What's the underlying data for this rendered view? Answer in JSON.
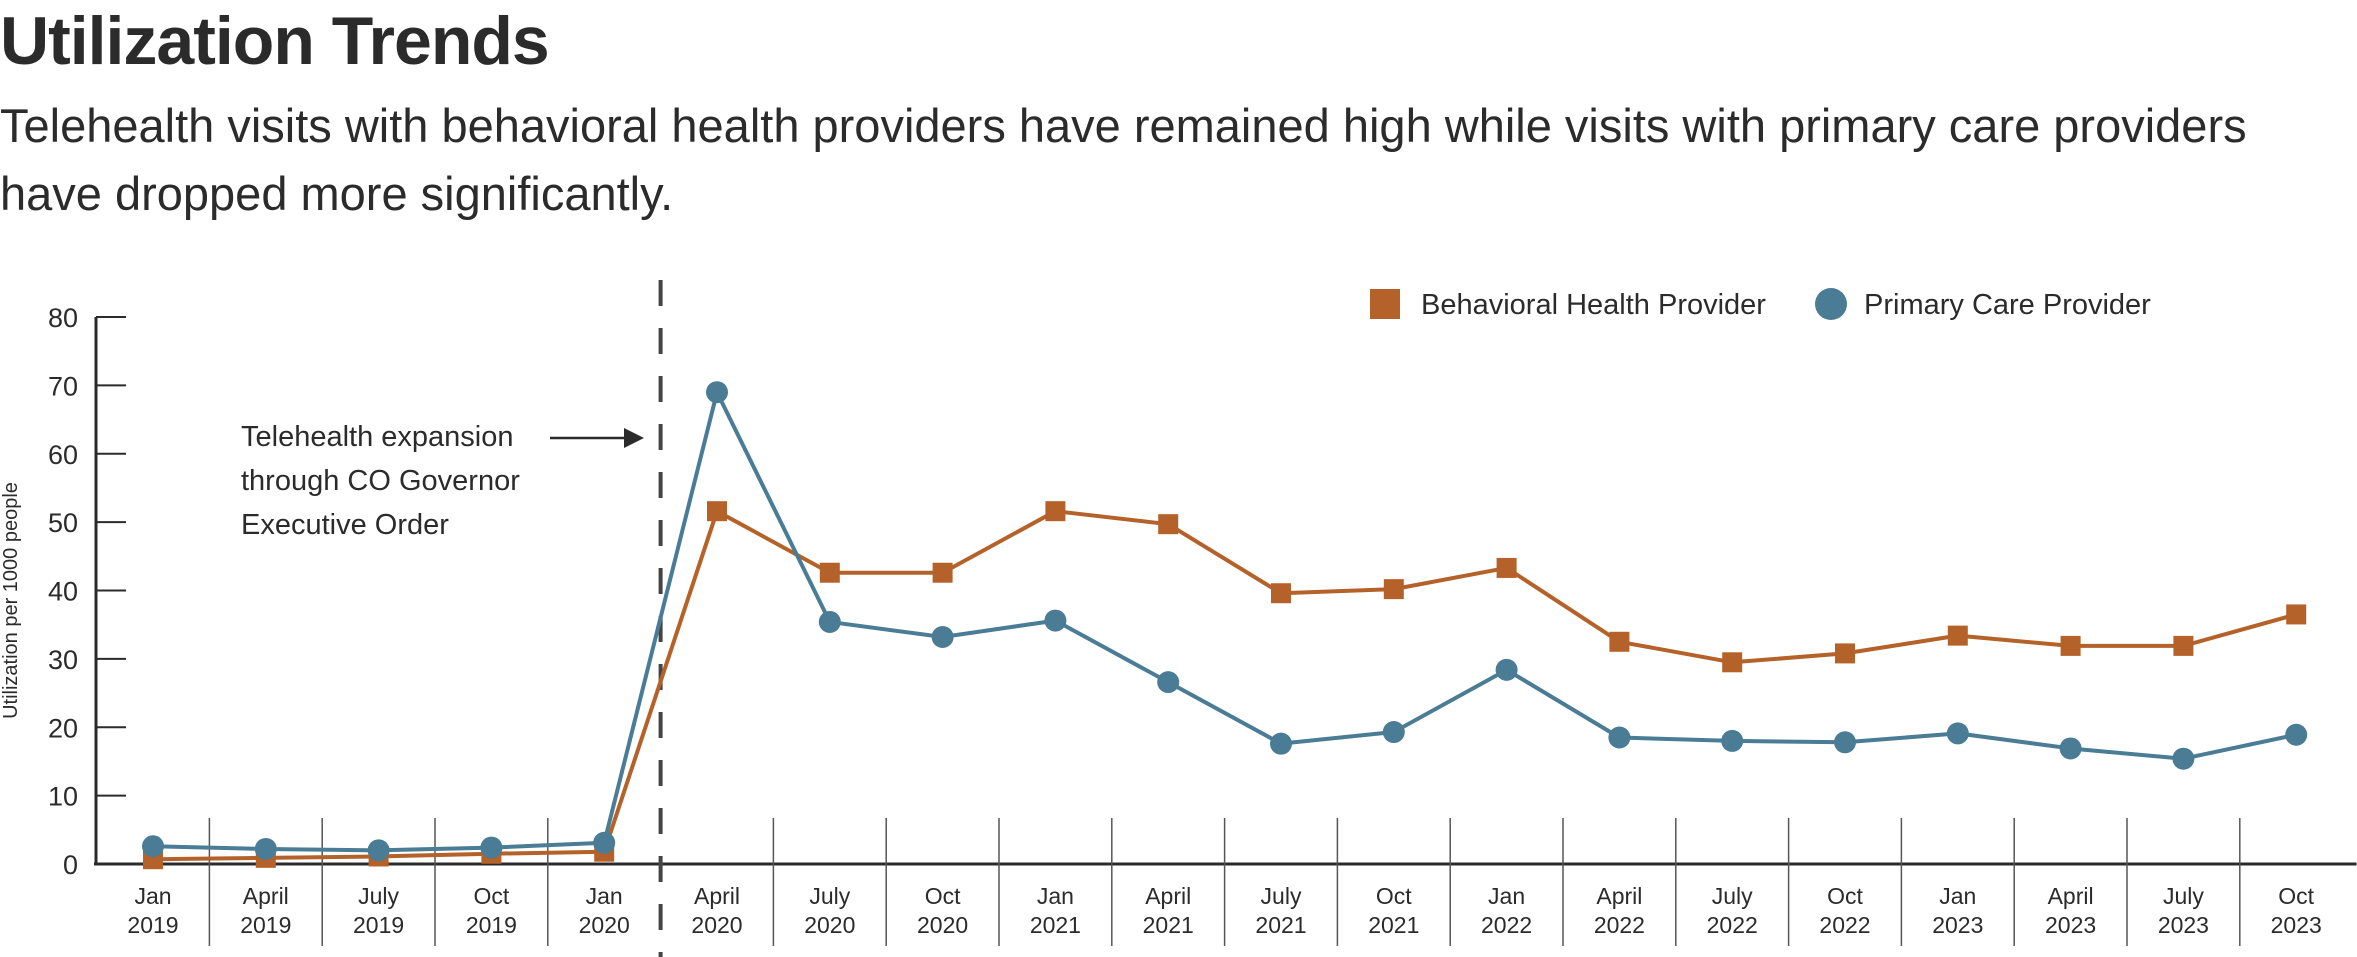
{
  "header": {
    "title": "Utilization Trends",
    "subtitle": "Telehealth visits with behavioral health providers have remained high while visits with primary care providers have dropped more significantly."
  },
  "chart_data": {
    "type": "line",
    "title": "Utilization Trends",
    "xlabel": "",
    "ylabel": "Utilization per 1000 people",
    "ylim": [
      0,
      80
    ],
    "yticks": [
      0,
      10,
      20,
      30,
      40,
      50,
      60,
      70,
      80
    ],
    "grid": false,
    "legend_position": "top-right",
    "categories": [
      [
        "Jan",
        "2019"
      ],
      [
        "April",
        "2019"
      ],
      [
        "July",
        "2019"
      ],
      [
        "Oct",
        "2019"
      ],
      [
        "Jan",
        "2020"
      ],
      [
        "April",
        "2020"
      ],
      [
        "July",
        "2020"
      ],
      [
        "Oct",
        "2020"
      ],
      [
        "Jan",
        "2021"
      ],
      [
        "April",
        "2021"
      ],
      [
        "July",
        "2021"
      ],
      [
        "Oct",
        "2021"
      ],
      [
        "Jan",
        "2022"
      ],
      [
        "April",
        "2022"
      ],
      [
        "July",
        "2022"
      ],
      [
        "Oct",
        "2022"
      ],
      [
        "Jan",
        "2023"
      ],
      [
        "April",
        "2023"
      ],
      [
        "July",
        "2023"
      ],
      [
        "Oct",
        "2023"
      ]
    ],
    "series": [
      {
        "name": "Behavioral Health Provider",
        "color": "#b5622a",
        "marker": "square",
        "values": [
          0.7,
          0.9,
          1.1,
          1.5,
          1.8,
          51.6,
          42.6,
          42.6,
          51.6,
          49.7,
          39.6,
          40.2,
          43.3,
          32.5,
          29.5,
          30.8,
          33.4,
          31.9,
          31.9,
          36.5
        ]
      },
      {
        "name": "Primary Care Provider",
        "color": "#4a7c96",
        "marker": "circle",
        "values": [
          2.6,
          2.2,
          2.0,
          2.4,
          3.1,
          69.0,
          35.4,
          33.2,
          35.6,
          26.6,
          17.6,
          19.3,
          28.4,
          18.5,
          18.0,
          17.8,
          19.1,
          16.9,
          15.4,
          18.9
        ]
      }
    ],
    "annotations": [
      {
        "lines": [
          "Telehealth expansion",
          "through CO Governor",
          "Executive Order"
        ],
        "marker": "dashed vertical line",
        "between": [
          "Jan 2020",
          "April 2020"
        ]
      }
    ]
  }
}
